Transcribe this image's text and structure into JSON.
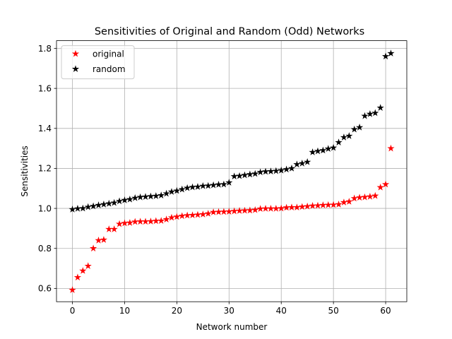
{
  "chart_data": {
    "type": "scatter",
    "title": "Sensitivities of Original and Random (Odd) Networks",
    "xlabel": "Network number",
    "ylabel": "Sensitivities",
    "xlim": [
      -3.05,
      64.05
    ],
    "ylim": [
      0.5335,
      1.8385
    ],
    "x_ticks": [
      0,
      10,
      20,
      30,
      40,
      50,
      60
    ],
    "x_tick_labels": [
      "0",
      "10",
      "20",
      "30",
      "40",
      "50",
      "60"
    ],
    "y_ticks": [
      0.6,
      0.8,
      1.0,
      1.2,
      1.4,
      1.6,
      1.8
    ],
    "y_tick_labels": [
      "0.6",
      "0.8",
      "1.0",
      "1.2",
      "1.4",
      "1.6",
      "1.8"
    ],
    "grid": true,
    "legend_position": "top-left",
    "marker": "star",
    "x": [
      0,
      1,
      2,
      3,
      4,
      5,
      6,
      7,
      8,
      9,
      10,
      11,
      12,
      13,
      14,
      15,
      16,
      17,
      18,
      19,
      20,
      21,
      22,
      23,
      24,
      25,
      26,
      27,
      28,
      29,
      30,
      31,
      32,
      33,
      34,
      35,
      36,
      37,
      38,
      39,
      40,
      41,
      42,
      43,
      44,
      45,
      46,
      47,
      48,
      49,
      50,
      51,
      52,
      53,
      54,
      55,
      56,
      57,
      58,
      59,
      60,
      61
    ],
    "series": [
      {
        "name": "original",
        "color": "#ff0000",
        "values": [
          0.592,
          0.655,
          0.688,
          0.712,
          0.8,
          0.84,
          0.843,
          0.896,
          0.896,
          0.922,
          0.926,
          0.928,
          0.933,
          0.934,
          0.934,
          0.935,
          0.937,
          0.938,
          0.945,
          0.954,
          0.958,
          0.962,
          0.965,
          0.966,
          0.968,
          0.97,
          0.974,
          0.981,
          0.982,
          0.983,
          0.984,
          0.986,
          0.988,
          0.989,
          0.99,
          0.992,
          0.998,
          0.999,
          0.999,
          0.999,
          1.0,
          1.004,
          1.005,
          1.005,
          1.008,
          1.01,
          1.013,
          1.014,
          1.016,
          1.017,
          1.018,
          1.02,
          1.03,
          1.034,
          1.05,
          1.054,
          1.056,
          1.059,
          1.063,
          1.105,
          1.12,
          1.3
        ]
      },
      {
        "name": "random",
        "color": "#000000",
        "values": [
          0.995,
          0.999,
          1.0,
          1.007,
          1.011,
          1.016,
          1.02,
          1.024,
          1.028,
          1.036,
          1.041,
          1.045,
          1.052,
          1.056,
          1.058,
          1.06,
          1.062,
          1.065,
          1.074,
          1.083,
          1.088,
          1.095,
          1.102,
          1.106,
          1.108,
          1.112,
          1.113,
          1.116,
          1.119,
          1.12,
          1.129,
          1.16,
          1.162,
          1.166,
          1.17,
          1.173,
          1.181,
          1.184,
          1.185,
          1.187,
          1.19,
          1.195,
          1.2,
          1.22,
          1.225,
          1.232,
          1.281,
          1.286,
          1.29,
          1.298,
          1.303,
          1.33,
          1.355,
          1.362,
          1.395,
          1.405,
          1.462,
          1.472,
          1.477,
          1.503,
          1.76,
          1.775
        ]
      }
    ]
  }
}
